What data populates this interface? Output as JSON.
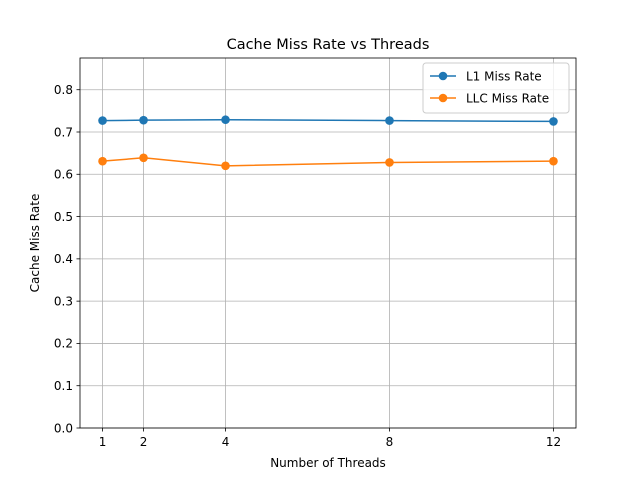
{
  "chart_data": {
    "type": "line",
    "title": "Cache Miss Rate vs Threads",
    "xlabel": "Number of Threads",
    "ylabel": "Cache Miss Rate",
    "x": [
      1,
      2,
      4,
      8,
      12
    ],
    "x_ticks": [
      1,
      2,
      4,
      8,
      12
    ],
    "y_ticks": [
      0.0,
      0.1,
      0.2,
      0.3,
      0.4,
      0.5,
      0.6,
      0.7,
      0.8
    ],
    "xlim": [
      0.45,
      12.55
    ],
    "ylim": [
      0.0,
      0.875
    ],
    "grid": true,
    "legend_position": "upper right",
    "series": [
      {
        "name": "L1 Miss Rate",
        "color": "#1f77b4",
        "marker": "circle",
        "values": [
          0.727,
          0.728,
          0.729,
          0.727,
          0.725
        ]
      },
      {
        "name": "LLC Miss Rate",
        "color": "#ff7f0e",
        "marker": "circle",
        "values": [
          0.631,
          0.639,
          0.62,
          0.628,
          0.631
        ]
      }
    ]
  }
}
